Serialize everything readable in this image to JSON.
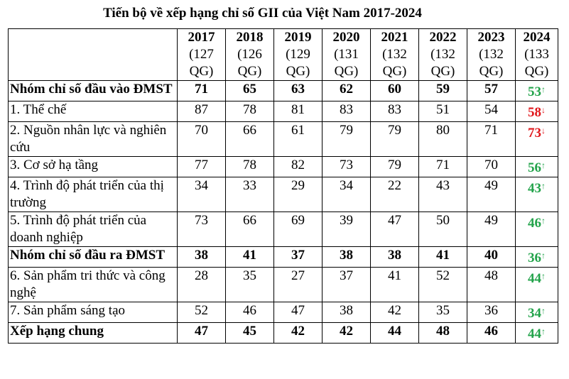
{
  "title": "Tiến bộ về xếp hạng chỉ số GII của Việt Nam 2017-2024",
  "colors": {
    "up": "#22a34a",
    "down": "#e0161b"
  },
  "years": [
    {
      "year": "2017",
      "q1": "(127",
      "q2": "QG)"
    },
    {
      "year": "2018",
      "q1": "(126",
      "q2": "QG)"
    },
    {
      "year": "2019",
      "q1": "(129",
      "q2": "QG)"
    },
    {
      "year": "2020",
      "q1": "(131",
      "q2": "QG)"
    },
    {
      "year": "2021",
      "q1": "(132",
      "q2": "QG)"
    },
    {
      "year": "2022",
      "q1": "(132",
      "q2": "QG)"
    },
    {
      "year": "2023",
      "q1": "(132",
      "q2": "QG)"
    },
    {
      "year": "2024",
      "q1": "(133",
      "q2": "QG)"
    }
  ],
  "rows": [
    {
      "label": "Nhóm chỉ số đầu vào ĐMST",
      "bold": true,
      "values": [
        "71",
        "65",
        "63",
        "62",
        "60",
        "59",
        "57"
      ],
      "last": "53",
      "arrow": "↑",
      "trend": "up"
    },
    {
      "label": "1. Thể chế",
      "bold": false,
      "values": [
        "87",
        "78",
        "81",
        "83",
        "83",
        "51",
        "54"
      ],
      "last": "58",
      "arrow": "↓",
      "trend": "down"
    },
    {
      "label": "2. Nguồn nhân lực và nghiên cứu",
      "bold": false,
      "values": [
        "70",
        "66",
        "61",
        "79",
        "79",
        "80",
        "71"
      ],
      "last": "73",
      "arrow": "↓",
      "trend": "down"
    },
    {
      "label": "3. Cơ sở hạ tầng",
      "bold": false,
      "values": [
        "77",
        "78",
        "82",
        "73",
        "79",
        "71",
        "70"
      ],
      "last": "56",
      "arrow": "↑",
      "trend": "up"
    },
    {
      "label": "4. Trình độ phát triển của thị trường",
      "bold": false,
      "values": [
        "34",
        "33",
        "29",
        "34",
        "22",
        "43",
        "49"
      ],
      "last": "43",
      "arrow": "↑",
      "trend": "up"
    },
    {
      "label": "5. Trình độ phát triển của doanh nghiệp",
      "bold": false,
      "values": [
        "73",
        "66",
        "69",
        "39",
        "47",
        "50",
        "49"
      ],
      "last": "46",
      "arrow": "↑",
      "trend": "up"
    },
    {
      "label": "Nhóm chỉ số đầu ra ĐMST",
      "bold": true,
      "values": [
        "38",
        "41",
        "37",
        "38",
        "38",
        "41",
        "40"
      ],
      "last": "36",
      "arrow": "↑",
      "trend": "up"
    },
    {
      "label": "6. Sản phẩm tri thức và công nghệ",
      "bold": false,
      "values": [
        "28",
        "35",
        "27",
        "37",
        "41",
        "52",
        "48"
      ],
      "last": "44",
      "arrow": "↑",
      "trend": "up"
    },
    {
      "label": "7. Sản phẩm sáng tạo",
      "bold": false,
      "values": [
        "52",
        "46",
        "47",
        "38",
        "42",
        "35",
        "36"
      ],
      "last": "34",
      "arrow": "↑",
      "trend": "up"
    },
    {
      "label": "Xếp hạng chung",
      "bold": true,
      "values": [
        "47",
        "45",
        "42",
        "42",
        "44",
        "48",
        "46"
      ],
      "last": "44",
      "arrow": "↑",
      "trend": "up"
    }
  ]
}
